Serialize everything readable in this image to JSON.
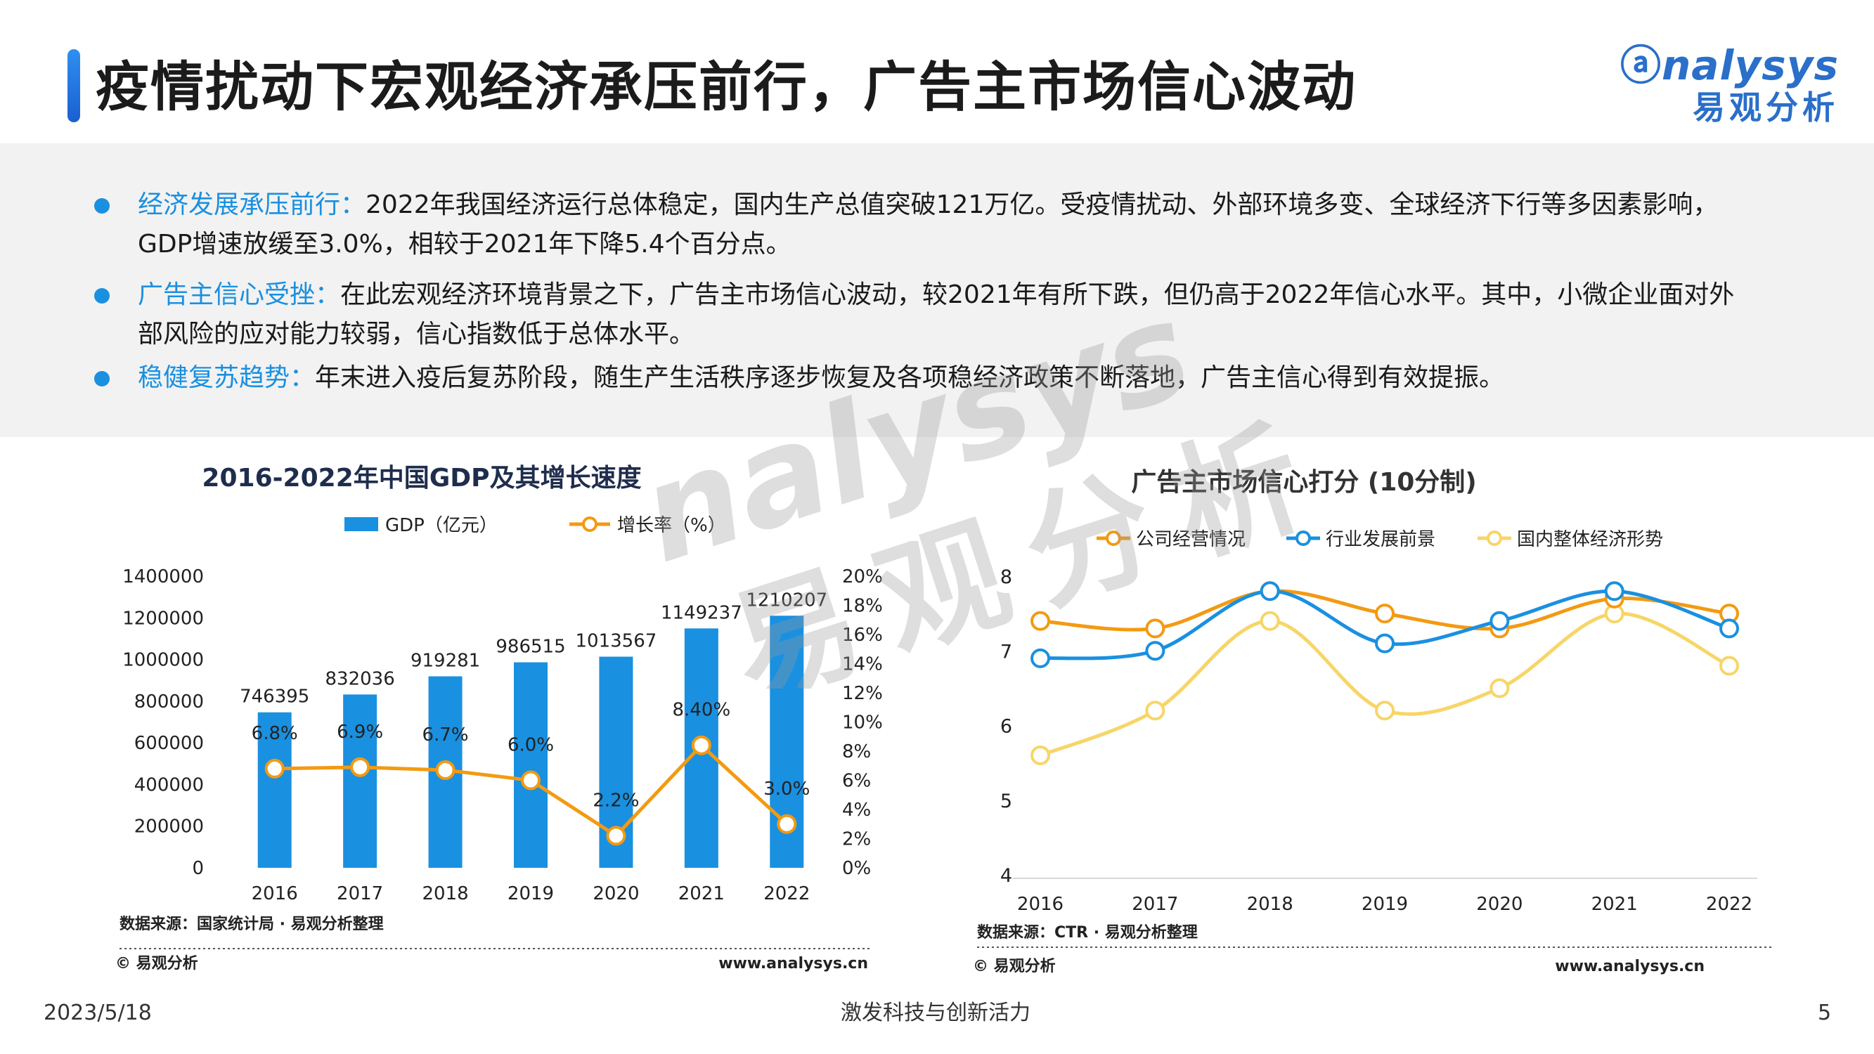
{
  "page": {
    "title": "疫情扰动下宏观经济承压前行，广告主市场信心波动",
    "logo_en": "nalysys",
    "logo_cn": "易观分析",
    "watermark_en": "nalysys",
    "watermark_cn": "易观分析",
    "date": "2023/5/18",
    "slogan": "激发科技与创新活力",
    "page_number": "5"
  },
  "bullets": [
    {
      "highlight": "经济发展承压前行：",
      "text": "2022年我国经济运行总体稳定，国内生产总值突破121万亿。受疫情扰动、外部环境多变、全球经济下行等多因素影响，GDP增速放缓至3.0%，相较于2021年下降5.4个百分点。"
    },
    {
      "highlight": "广告主信心受挫：",
      "text": "在此宏观经济环境背景之下，广告主市场信心波动，较2021年有所下跌，但仍高于2022年信心水平。其中，小微企业面对外部风险的应对能力较弱，信心指数低于总体水平。"
    },
    {
      "highlight": "稳健复苏趋势：",
      "text": "年末进入疫后复苏阶段，随生产生活秩序逐步恢复及各项稳经济政策不断落地，广告主信心得到有效提振。"
    }
  ],
  "footers": {
    "left_source": "数据来源：国家统计局 · 易观分析整理",
    "right_source": "数据来源：CTR · 易观分析整理",
    "copyright": "© 易观分析",
    "website": "www.analysys.cn"
  },
  "colors": {
    "bar": "#1a90e0",
    "orange": "#f39a12",
    "blue": "#1a90e0",
    "yellow": "#f7d567",
    "accent": "#1a90e0"
  },
  "chart_data": [
    {
      "type": "bar",
      "title": "2016-2022年中国GDP及其增长速度",
      "categories": [
        "2016",
        "2017",
        "2018",
        "2019",
        "2020",
        "2021",
        "2022"
      ],
      "series": [
        {
          "name": "GDP（亿元）",
          "type": "bar",
          "axis": "left",
          "values": [
            746395,
            832036,
            919281,
            986515,
            1013567,
            1149237,
            1210207
          ],
          "labels": [
            "746395",
            "832036",
            "919281",
            "986515",
            "1013567",
            "1149237",
            "1210207"
          ]
        },
        {
          "name": "增长率（%）",
          "type": "line",
          "axis": "right",
          "values": [
            6.8,
            6.9,
            6.7,
            6.0,
            2.2,
            8.4,
            3.0
          ],
          "labels": [
            "6.8%",
            "6.9%",
            "6.7%",
            "6.0%",
            "2.2%",
            "8.40%",
            "3.0%"
          ]
        }
      ],
      "left_ticks": [
        "0",
        "200000",
        "400000",
        "600000",
        "800000",
        "1000000",
        "1200000",
        "1400000"
      ],
      "right_ticks": [
        "0%",
        "2%",
        "4%",
        "6%",
        "8%",
        "10%",
        "12%",
        "14%",
        "16%",
        "18%",
        "20%"
      ],
      "ylim_left": [
        0,
        1400000
      ],
      "ylim_right": [
        0,
        20
      ]
    },
    {
      "type": "line",
      "title": "广告主市场信心打分 (10分制)",
      "x": [
        "2016",
        "2017",
        "2018",
        "2019",
        "2020",
        "2021",
        "2022"
      ],
      "series": [
        {
          "name": "公司经营情况",
          "values": [
            7.4,
            7.3,
            7.8,
            7.5,
            7.3,
            7.7,
            7.5
          ]
        },
        {
          "name": "行业发展前景",
          "values": [
            6.9,
            7.0,
            7.8,
            7.1,
            7.4,
            7.8,
            7.3
          ]
        },
        {
          "name": "国内整体经济形势",
          "values": [
            5.6,
            6.2,
            7.4,
            6.2,
            6.5,
            7.5,
            6.8
          ]
        }
      ],
      "y_ticks": [
        "4",
        "5",
        "6",
        "7",
        "8"
      ],
      "ylim": [
        4,
        8
      ]
    }
  ]
}
